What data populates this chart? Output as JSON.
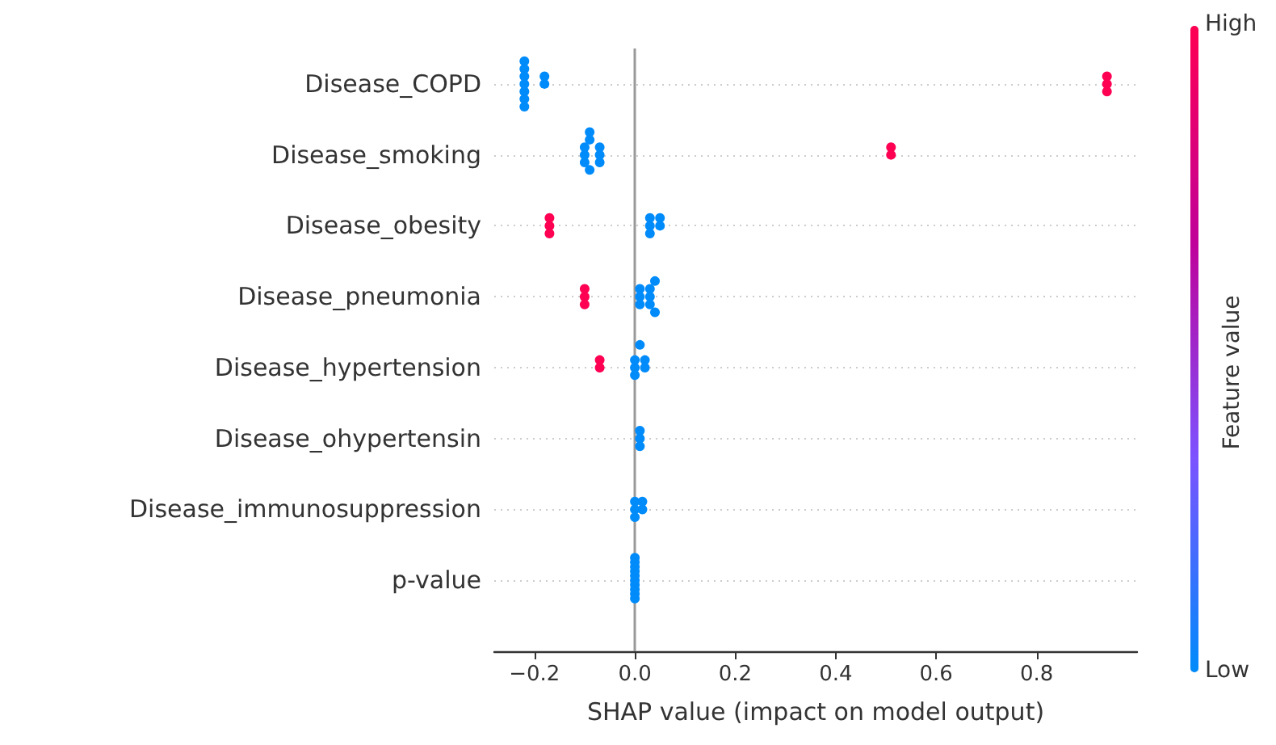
{
  "chart_data": {
    "type": "scatter",
    "orientation": "horizontal",
    "xlabel": "SHAP value (impact on model output)",
    "clabel": "Feature value",
    "categories": [
      "Disease_COPD",
      "Disease_smoking",
      "Disease_obesity",
      "Disease_pneumonia",
      "Disease_hypertension",
      "Disease_ohypertensin",
      "Disease_immunosuppression",
      "p-value"
    ],
    "series": [
      {
        "x": [
          "Disease_COPD",
          "Disease_COPD",
          "Disease_COPD",
          "Disease_COPD",
          "Disease_COPD",
          "Disease_COPD",
          "Disease_COPD",
          "Disease_COPD",
          "Disease_COPD",
          "Disease_COPD",
          "Disease_COPD",
          "Disease_COPD",
          "Disease_smoking",
          "Disease_smoking",
          "Disease_smoking",
          "Disease_smoking",
          "Disease_smoking",
          "Disease_smoking",
          "Disease_smoking",
          "Disease_smoking",
          "Disease_smoking",
          "Disease_smoking",
          "Disease_smoking",
          "Disease_obesity",
          "Disease_obesity",
          "Disease_obesity",
          "Disease_obesity",
          "Disease_obesity",
          "Disease_obesity",
          "Disease_obesity",
          "Disease_obesity",
          "Disease_pneumonia",
          "Disease_pneumonia",
          "Disease_pneumonia",
          "Disease_pneumonia",
          "Disease_pneumonia",
          "Disease_pneumonia",
          "Disease_pneumonia",
          "Disease_pneumonia",
          "Disease_pneumonia",
          "Disease_pneumonia",
          "Disease_pneumonia",
          "Disease_hypertension",
          "Disease_hypertension",
          "Disease_hypertension",
          "Disease_hypertension",
          "Disease_hypertension",
          "Disease_hypertension",
          "Disease_hypertension",
          "Disease_hypertension",
          "Disease_ohypertensin",
          "Disease_ohypertensin",
          "Disease_ohypertensin",
          "Disease_immunosuppression",
          "Disease_immunosuppression",
          "Disease_immunosuppression",
          "Disease_immunosuppression",
          "Disease_immunosuppression",
          "p-value",
          "p-value",
          "p-value",
          "p-value",
          "p-value",
          "p-value",
          "p-value",
          "p-value",
          "p-value",
          "p-value"
        ],
        "values": [
          -0.22,
          -0.22,
          -0.22,
          -0.22,
          -0.22,
          -0.22,
          -0.22,
          -0.18,
          -0.18,
          0.94,
          0.94,
          0.94,
          -0.1,
          -0.1,
          -0.1,
          -0.09,
          -0.09,
          -0.09,
          -0.07,
          -0.07,
          -0.07,
          0.51,
          0.51,
          0.03,
          0.03,
          0.03,
          0.05,
          0.05,
          -0.17,
          -0.17,
          -0.17,
          0.01,
          0.01,
          0.01,
          0.03,
          0.03,
          0.03,
          0.04,
          0.04,
          -0.1,
          -0.1,
          -0.1,
          0.0,
          0.0,
          0.0,
          0.02,
          0.02,
          0.01,
          -0.07,
          -0.07,
          0.01,
          0.01,
          0.01,
          0.0,
          0.0,
          0.0,
          0.015,
          0.015,
          0.0,
          0.0,
          0.0,
          0.0,
          0.0,
          0.0,
          0.0,
          0.0,
          0.0,
          0.0
        ],
        "cvalues": [
          0,
          0,
          0,
          0,
          0,
          0,
          0,
          0,
          0,
          1,
          1,
          1,
          0,
          0,
          0,
          0,
          0,
          0,
          0,
          0,
          0,
          1,
          1,
          0,
          0,
          0,
          0,
          0,
          1,
          1,
          1,
          0,
          0,
          0,
          0,
          0,
          0,
          0,
          0,
          1,
          1,
          1,
          0,
          0,
          0,
          0,
          0,
          0,
          1,
          1,
          0,
          0,
          0,
          0,
          0,
          0,
          0,
          0,
          0,
          0,
          0,
          0,
          0,
          0,
          0,
          0,
          0,
          0
        ]
      }
    ],
    "xlim": [
      -0.28,
      1.0
    ],
    "xticks": [
      {
        "value": -0.2,
        "label": "−0.2"
      },
      {
        "value": 0,
        "label": "0.0"
      },
      {
        "value": 0.2,
        "label": "0.2"
      },
      {
        "value": 0.4,
        "label": "0.4"
      },
      {
        "value": 0.6,
        "label": "0.6"
      },
      {
        "value": 0.8,
        "label": "0.8"
      }
    ],
    "clim": [
      0,
      1
    ],
    "cticks": [
      {
        "value": 0,
        "label": "Low"
      },
      {
        "value": 1,
        "label": "High"
      }
    ],
    "colors": [
      "#008bfb",
      "#ff0052"
    ],
    "ref_lines": [
      {
        "axis": "x",
        "value": 0,
        "color": "#999999"
      }
    ],
    "grid": "y",
    "marker": "circle"
  }
}
